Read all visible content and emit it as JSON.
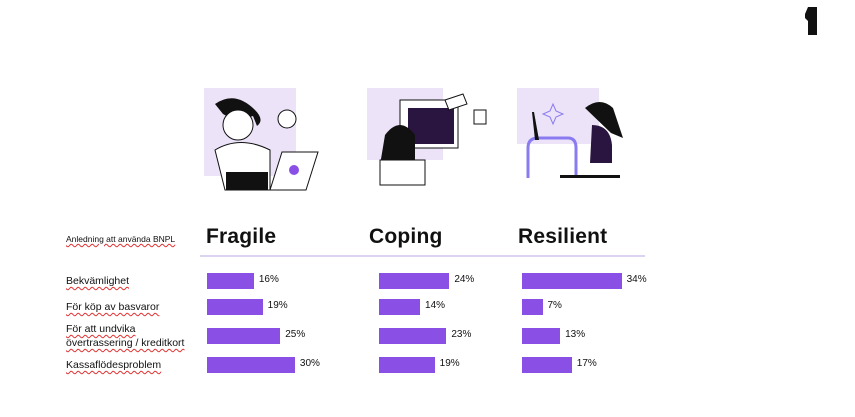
{
  "chart_data": {
    "type": "bar",
    "orientation": "horizontal",
    "header": "Anledning att använda BNPL",
    "categories": [
      "Bekvämlighet",
      "För köp av basvaror",
      "För att undvika övertrassering / kreditkort",
      "Kassaflödesproblem"
    ],
    "series": [
      {
        "name": "Fragile",
        "color": "#8a50e6",
        "values": [
          16,
          19,
          25,
          30
        ],
        "value_labels": [
          "16%",
          "19%",
          "25%",
          "30%"
        ]
      },
      {
        "name": "Coping",
        "color": "#8a50e6",
        "values": [
          24,
          14,
          23,
          19
        ],
        "value_labels": [
          "24%",
          "14%",
          "23%",
          "19%"
        ]
      },
      {
        "name": "Resilient",
        "color": "#8a50e6",
        "values": [
          34,
          7,
          13,
          17
        ],
        "value_labels": [
          "34%",
          "7%",
          "13%",
          "17%"
        ]
      }
    ]
  }
}
